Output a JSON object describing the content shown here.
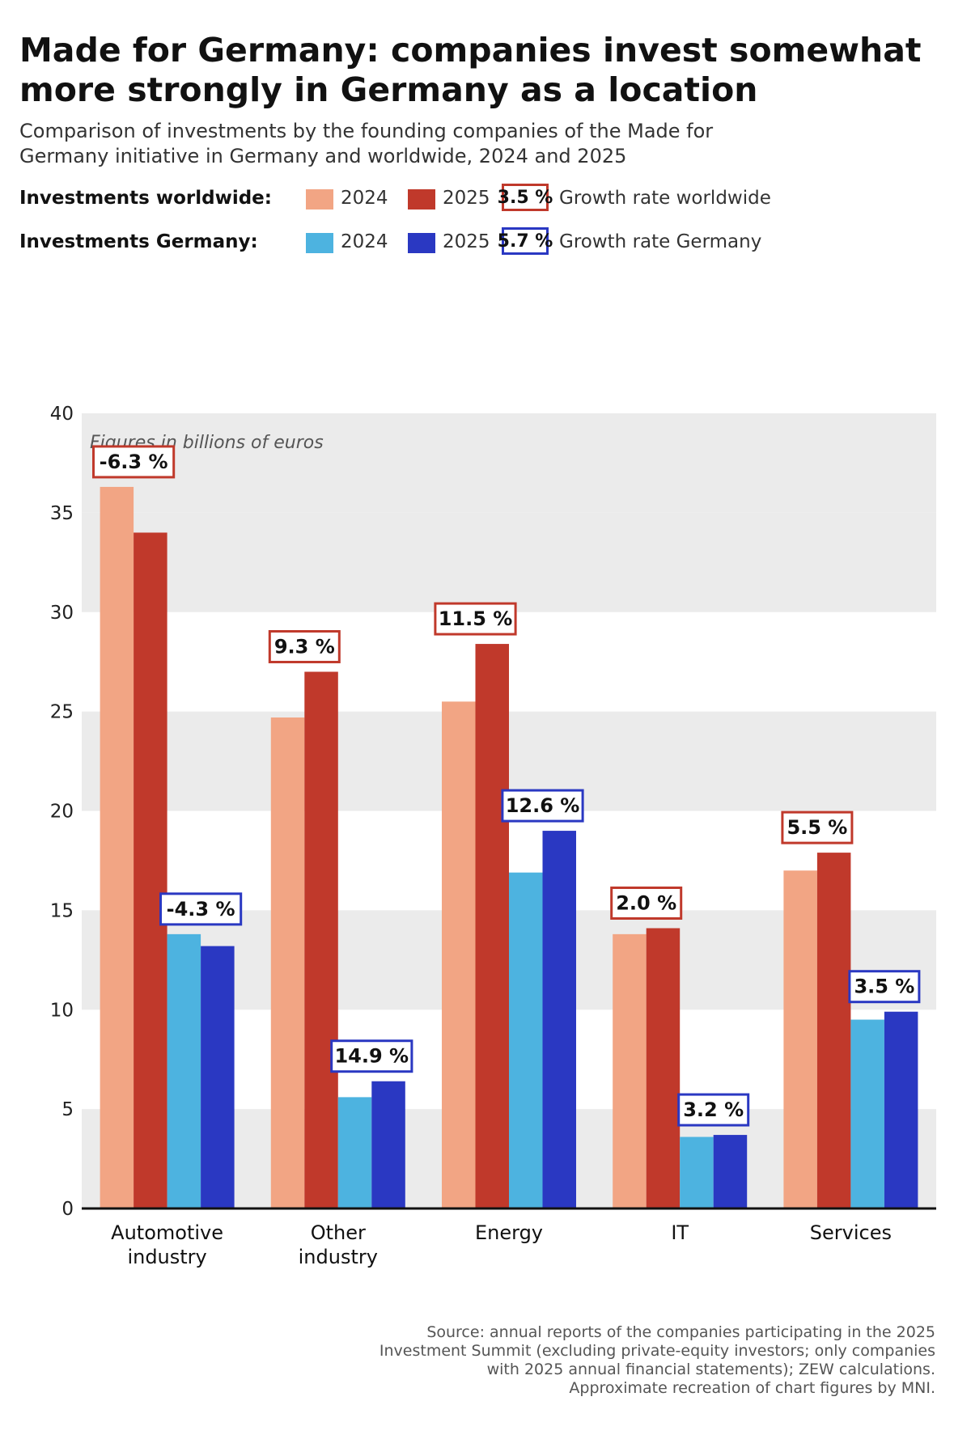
{
  "title": "Made for Germany: companies invest somewhat more strongly in Germany as a location",
  "subtitle": "Comparison of investments by the founding companies of the Made for Germany initiative in Germany and worldwide, 2024 and 2025",
  "legend": {
    "worldwide": {
      "heading": "Investments worldwide:",
      "label_2024": "2024",
      "label_2025": "2025",
      "rate_sample": "3.5 %",
      "rate_label": "Growth rate worldwide"
    },
    "germany": {
      "heading": "Investments Germany:",
      "label_2024": "2024",
      "label_2025": "2025",
      "rate_sample": "5.7 %",
      "rate_label": "Growth rate Germany"
    }
  },
  "colors": {
    "worldwide_2024": "#f2a584",
    "worldwide_2025": "#c0392b",
    "germany_2024": "#4db3e0",
    "germany_2025": "#2a38c2",
    "worldwide_rate_border": "#c0392b",
    "germany_rate_border": "#2a38c2",
    "band": "#ebebeb"
  },
  "chart_data": {
    "type": "bar",
    "unit_note": "Figures in billions of euros",
    "categories": [
      [
        "Automotive",
        "industry"
      ],
      [
        "Other",
        "industry"
      ],
      [
        "Energy"
      ],
      [
        "IT"
      ],
      [
        "Services"
      ]
    ],
    "series": [
      {
        "name": "Investments worldwide 2024",
        "values": [
          36.3,
          24.7,
          25.5,
          13.8,
          17.0
        ]
      },
      {
        "name": "Investments worldwide 2025",
        "values": [
          34.0,
          27.0,
          28.4,
          14.1,
          17.9
        ]
      },
      {
        "name": "Investments Germany 2024",
        "values": [
          13.8,
          5.6,
          16.9,
          3.6,
          9.5
        ]
      },
      {
        "name": "Investments Germany 2025",
        "values": [
          13.2,
          6.4,
          19.0,
          3.7,
          9.9
        ]
      }
    ],
    "growth_rates": {
      "worldwide": [
        "-6.3 %",
        "9.3 %",
        "11.5 %",
        "2.0 %",
        "5.5 %"
      ],
      "germany": [
        "-4.3 %",
        "14.9 %",
        "12.6 %",
        "3.2 %",
        "3.5 %"
      ]
    },
    "ylim": [
      0,
      40
    ],
    "yticks": [
      0,
      5,
      10,
      15,
      20,
      25,
      30,
      35,
      40
    ],
    "grid": "alternating horizontal bands",
    "legend": "top"
  },
  "source": [
    "Source: annual reports of the companies participating in the 2025",
    "Investment Summit (excluding private-equity investors; only companies",
    "with 2025 annual financial statements); ZEW calculations.",
    "Approximate recreation of chart figures by MNI."
  ]
}
